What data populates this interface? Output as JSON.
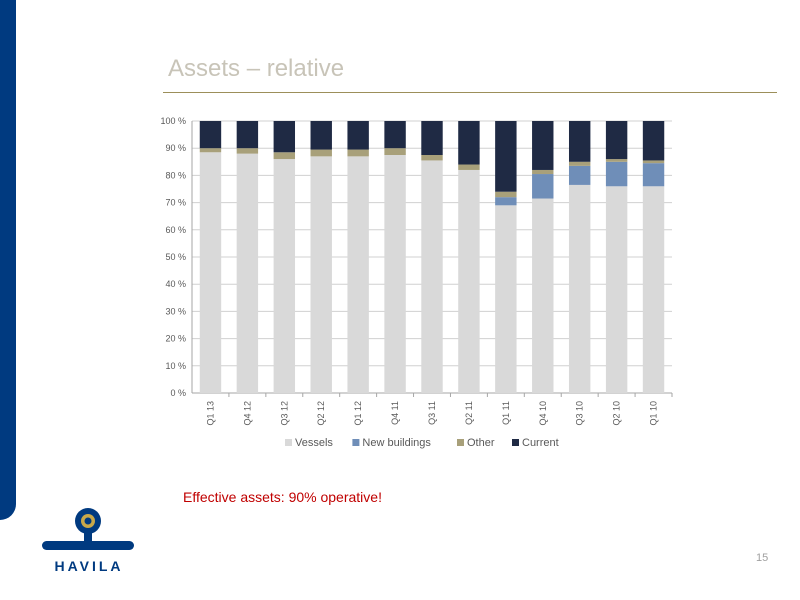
{
  "slide": {
    "title": "Assets – relative",
    "note": "Effective assets: 90% operative!",
    "page_number": "15",
    "logo_text": "HAVILA"
  },
  "colors": {
    "brand_blue": "#003a80",
    "title_rule": "#9c8f5a",
    "note_red": "#c00000",
    "logo_ring": "#c8a84a"
  },
  "chart_data": {
    "type": "bar",
    "stacked": true,
    "percent": true,
    "categories": [
      "Q1 13",
      "Q4 12",
      "Q3 12",
      "Q2 12",
      "Q1 12",
      "Q4 11",
      "Q3 11",
      "Q2 11",
      "Q1 11",
      "Q4 10",
      "Q3 10",
      "Q2 10",
      "Q1 10"
    ],
    "series": [
      {
        "name": "Vessels",
        "color": "#d9d9d9",
        "values": [
          88.5,
          88,
          86,
          87,
          87,
          87.5,
          85.5,
          82,
          69,
          71.5,
          76.5,
          76,
          76
        ]
      },
      {
        "name": "New buildings",
        "color": "#6f8eb8",
        "values": [
          0,
          0,
          0,
          0,
          0,
          0,
          0,
          0,
          3,
          9,
          7,
          9,
          8.5
        ]
      },
      {
        "name": "Other",
        "color": "#a8a07a",
        "values": [
          1.5,
          2,
          2.5,
          2.5,
          2.5,
          2.5,
          2,
          2,
          2,
          1.5,
          1.5,
          1,
          1
        ]
      },
      {
        "name": "Current",
        "color": "#1f2a44",
        "values": [
          10,
          10,
          11.5,
          10.5,
          10.5,
          10,
          12.5,
          16,
          26,
          18,
          15,
          14,
          14.5
        ]
      }
    ],
    "ylim": [
      0,
      100
    ],
    "yticks": [
      "0 %",
      "10 %",
      "20 %",
      "30 %",
      "40 %",
      "50 %",
      "60 %",
      "70 %",
      "80 %",
      "90 %",
      "100 %"
    ],
    "xlabel": "",
    "ylabel": "",
    "grid": true,
    "legend": "bottom"
  }
}
